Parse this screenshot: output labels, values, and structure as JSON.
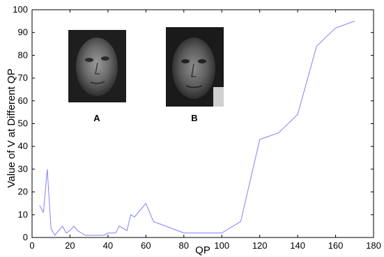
{
  "chart_data": {
    "type": "line",
    "xlabel": "QP",
    "ylabel": "Value of V at Different QP",
    "xlim": [
      0,
      180
    ],
    "ylim": [
      0,
      100
    ],
    "xticks": [
      "0",
      "20",
      "40",
      "60",
      "80",
      "100",
      "120",
      "140",
      "160",
      "180"
    ],
    "yticks": [
      "0",
      "10",
      "20",
      "30",
      "40",
      "50",
      "60",
      "70",
      "80",
      "90",
      "100"
    ],
    "grid": false,
    "line_color": "#8080ff",
    "series": [
      {
        "x": [
          4,
          6,
          8,
          10,
          12,
          14,
          16,
          18,
          20,
          22,
          24,
          26,
          28,
          30,
          32,
          34,
          36,
          38,
          40,
          42,
          44,
          46,
          48,
          50,
          52,
          54,
          56,
          58,
          60,
          64,
          80,
          100,
          110,
          120,
          130,
          140,
          150,
          160,
          170
        ],
        "y": [
          14,
          11,
          30,
          4,
          1,
          3,
          5,
          2,
          3,
          5,
          3,
          2,
          1,
          1,
          1,
          1,
          1,
          1,
          2,
          2,
          2,
          5,
          4,
          3,
          10,
          9,
          11,
          13,
          15,
          7,
          2,
          2,
          7,
          43,
          46,
          54,
          84,
          92,
          95
        ]
      }
    ],
    "annotations": [
      {
        "label": "A",
        "image": "face-photo-a"
      },
      {
        "label": "B",
        "image": "face-photo-b"
      }
    ]
  }
}
